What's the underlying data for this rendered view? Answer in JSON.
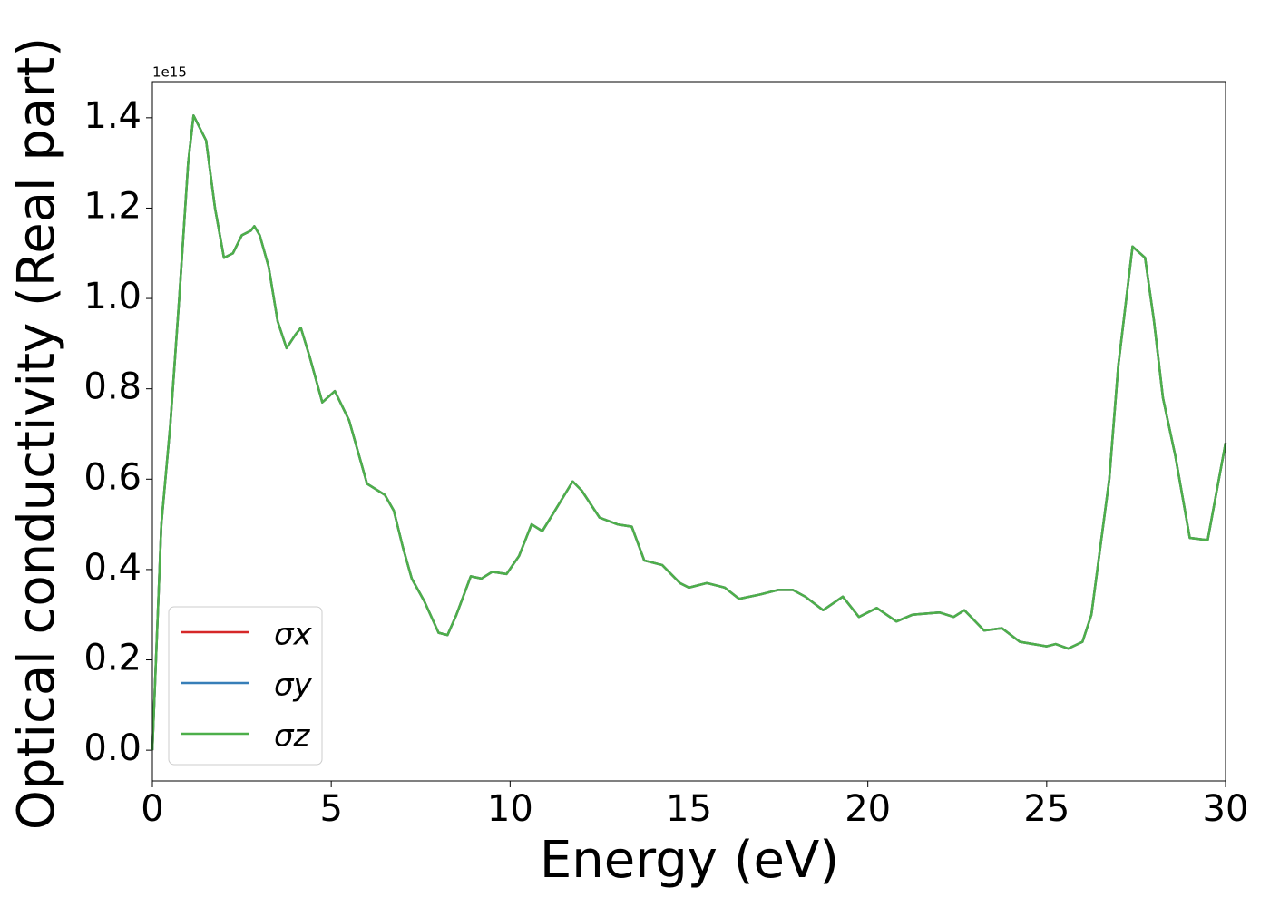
{
  "chart_data": {
    "type": "line",
    "xlabel": "Energy (eV)",
    "ylabel": "Optical conductivity (Real part)",
    "offset_label": "1e15",
    "x": [
      0,
      0.25,
      0.5,
      0.75,
      1.0,
      1.15,
      1.5,
      1.75,
      2.0,
      2.25,
      2.5,
      2.75,
      2.85,
      3.0,
      3.25,
      3.5,
      3.75,
      4.0,
      4.15,
      4.4,
      4.75,
      5.1,
      5.5,
      6.0,
      6.5,
      6.75,
      7.0,
      7.25,
      7.6,
      8.0,
      8.25,
      8.5,
      8.9,
      9.2,
      9.5,
      9.9,
      10.25,
      10.6,
      10.9,
      11.25,
      11.75,
      12.0,
      12.5,
      13.0,
      13.4,
      13.75,
      14.25,
      14.75,
      15.0,
      15.5,
      16.0,
      16.4,
      17.0,
      17.5,
      17.9,
      18.25,
      18.75,
      19.3,
      19.75,
      20.25,
      20.8,
      21.25,
      22.0,
      22.4,
      22.7,
      23.25,
      23.75,
      24.25,
      25.0,
      25.25,
      25.6,
      26.0,
      26.25,
      26.75,
      27.0,
      27.4,
      27.75,
      28.0,
      28.25,
      28.6,
      29.0,
      29.5,
      30.0
    ],
    "series": [
      {
        "name": "σx",
        "color": "#d62728",
        "values": [
          0,
          0.5,
          0.72,
          1.0,
          1.3,
          1.405,
          1.35,
          1.2,
          1.09,
          1.1,
          1.14,
          1.15,
          1.16,
          1.14,
          1.07,
          0.95,
          0.89,
          0.92,
          0.935,
          0.87,
          0.77,
          0.795,
          0.73,
          0.59,
          0.565,
          0.53,
          0.45,
          0.38,
          0.33,
          0.26,
          0.255,
          0.3,
          0.385,
          0.38,
          0.395,
          0.39,
          0.43,
          0.5,
          0.485,
          0.53,
          0.595,
          0.575,
          0.515,
          0.5,
          0.495,
          0.42,
          0.41,
          0.37,
          0.36,
          0.37,
          0.36,
          0.335,
          0.345,
          0.355,
          0.355,
          0.34,
          0.31,
          0.34,
          0.295,
          0.315,
          0.285,
          0.3,
          0.305,
          0.295,
          0.31,
          0.265,
          0.27,
          0.24,
          0.23,
          0.235,
          0.225,
          0.24,
          0.3,
          0.6,
          0.85,
          1.115,
          1.09,
          0.95,
          0.78,
          0.65,
          0.47,
          0.465,
          0.68
        ]
      },
      {
        "name": "σy",
        "color": "#377eb8",
        "values": [
          0,
          0.5,
          0.72,
          1.0,
          1.3,
          1.405,
          1.35,
          1.2,
          1.09,
          1.1,
          1.14,
          1.15,
          1.16,
          1.14,
          1.07,
          0.95,
          0.89,
          0.92,
          0.935,
          0.87,
          0.77,
          0.795,
          0.73,
          0.59,
          0.565,
          0.53,
          0.45,
          0.38,
          0.33,
          0.26,
          0.255,
          0.3,
          0.385,
          0.38,
          0.395,
          0.39,
          0.43,
          0.5,
          0.485,
          0.53,
          0.595,
          0.575,
          0.515,
          0.5,
          0.495,
          0.42,
          0.41,
          0.37,
          0.36,
          0.37,
          0.36,
          0.335,
          0.345,
          0.355,
          0.355,
          0.34,
          0.31,
          0.34,
          0.295,
          0.315,
          0.285,
          0.3,
          0.305,
          0.295,
          0.31,
          0.265,
          0.27,
          0.24,
          0.23,
          0.235,
          0.225,
          0.24,
          0.3,
          0.6,
          0.85,
          1.115,
          1.09,
          0.95,
          0.78,
          0.65,
          0.47,
          0.465,
          0.68
        ]
      },
      {
        "name": "σz",
        "color": "#4daf4a",
        "values": [
          0,
          0.5,
          0.72,
          1.0,
          1.3,
          1.405,
          1.35,
          1.2,
          1.09,
          1.1,
          1.14,
          1.15,
          1.16,
          1.14,
          1.07,
          0.95,
          0.89,
          0.92,
          0.935,
          0.87,
          0.77,
          0.795,
          0.73,
          0.59,
          0.565,
          0.53,
          0.45,
          0.38,
          0.33,
          0.26,
          0.255,
          0.3,
          0.385,
          0.38,
          0.395,
          0.39,
          0.43,
          0.5,
          0.485,
          0.53,
          0.595,
          0.575,
          0.515,
          0.5,
          0.495,
          0.42,
          0.41,
          0.37,
          0.36,
          0.37,
          0.36,
          0.335,
          0.345,
          0.355,
          0.355,
          0.34,
          0.31,
          0.34,
          0.295,
          0.315,
          0.285,
          0.3,
          0.305,
          0.295,
          0.31,
          0.265,
          0.27,
          0.24,
          0.23,
          0.235,
          0.225,
          0.24,
          0.3,
          0.6,
          0.85,
          1.115,
          1.09,
          0.95,
          0.78,
          0.65,
          0.47,
          0.465,
          0.68
        ]
      }
    ],
    "xlim": [
      0,
      30
    ],
    "xticks": [
      0,
      5,
      10,
      15,
      20,
      25,
      30
    ],
    "ylim": [
      -0.068,
      1.48
    ],
    "yticks": [
      {
        "value": 0,
        "label": "0.0"
      },
      0.2,
      0.4,
      0.6,
      0.8,
      {
        "value": 1,
        "label": "1.0"
      },
      1.2,
      1.4
    ],
    "legend": "lower left",
    "grid": false
  }
}
